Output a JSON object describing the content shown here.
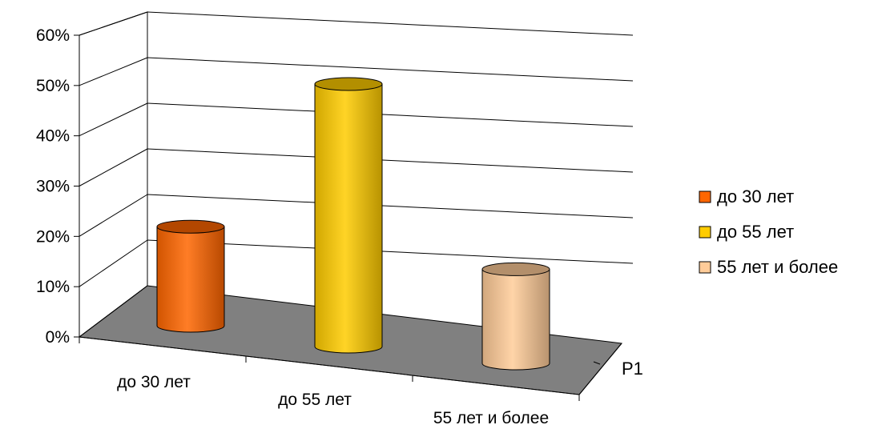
{
  "chart_data": {
    "type": "bar",
    "style": "3d-cylinder",
    "categories": [
      "до 30 лет",
      "до 55 лет",
      "55 лет и более"
    ],
    "series": [
      {
        "name": "до 30 лет",
        "value": 20,
        "color": "#ff6600"
      },
      {
        "name": "до 55 лет",
        "value": 53,
        "color": "#ffcc00"
      },
      {
        "name": "55 лет и более",
        "value": 19,
        "color": "#ffcc99"
      }
    ],
    "depth_label": "Р1",
    "y_ticks": [
      "0%",
      "10%",
      "20%",
      "30%",
      "40%",
      "50%",
      "60%"
    ],
    "ylim": [
      0,
      60
    ],
    "grid": true,
    "legend_position": "right",
    "floor_color": "#808080"
  }
}
